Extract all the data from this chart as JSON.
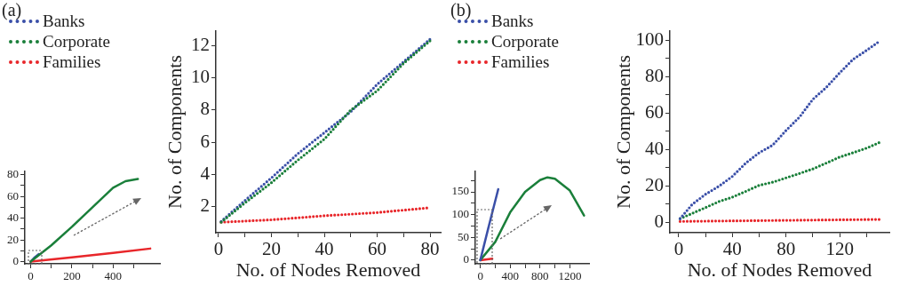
{
  "chart_data": [
    {
      "type": "line",
      "title": "(a)",
      "legend": "top left",
      "line_style": "solid",
      "xlim": [
        -28,
        627
      ],
      "xticks": [
        0,
        {
          "value": 100,
          "label": null
        },
        200,
        {
          "value": 300,
          "label": null
        },
        400,
        {
          "value": 500,
          "label": null
        }
      ],
      "ylim": [
        -2,
        83
      ],
      "yticks": [
        0,
        {
          "value": 10,
          "label": null
        },
        20,
        {
          "value": 30,
          "label": null
        },
        40,
        {
          "value": 50,
          "label": null
        },
        60,
        {
          "value": 70,
          "label": null
        },
        80
      ],
      "series": [
        {
          "name": "Corporate",
          "color": "#1a7f3a",
          "x": [
            0,
            100,
            200,
            300,
            400,
            460,
            520
          ],
          "values": [
            0,
            15,
            32,
            50,
            68,
            74,
            76
          ]
        },
        {
          "name": "Families",
          "color": "#e8262a",
          "x": [
            0,
            200,
            400,
            580
          ],
          "values": [
            0,
            4,
            8,
            12
          ]
        },
        {
          "name": "Banks",
          "color": "#3a4fa8",
          "x": [
            0,
            20,
            40
          ],
          "values": [
            0,
            4,
            7
          ]
        }
      ]
    },
    {
      "type": "line",
      "xlabel": "No. of Nodes Removed",
      "ylabel": "No. of Components",
      "line_style": "dotted",
      "legend": false,
      "xlim": [
        -1,
        84
      ],
      "xticks": [
        0,
        {
          "value": 10,
          "label": null
        },
        20,
        {
          "value": 30,
          "label": null
        },
        40,
        {
          "value": 50,
          "label": null
        },
        60,
        {
          "value": 70,
          "label": null
        },
        80
      ],
      "ylim": [
        0.4,
        12.9
      ],
      "yticks": [
        2,
        4,
        6,
        8,
        10,
        12
      ],
      "series": [
        {
          "color": "#1a7f3a",
          "x": [
            1,
            10,
            20,
            30,
            40,
            50,
            60,
            70,
            80
          ],
          "values": [
            1.05,
            2.25,
            3.5,
            4.9,
            6.2,
            8.0,
            9.2,
            10.9,
            12.3
          ]
        },
        {
          "color": "#3a4fa8",
          "x": [
            1,
            10,
            20,
            30,
            40,
            50,
            60,
            70,
            80
          ],
          "values": [
            1.1,
            2.4,
            3.8,
            5.3,
            6.6,
            7.9,
            9.6,
            11.0,
            12.4
          ]
        },
        {
          "color": "#e8262a",
          "x": [
            1,
            20,
            40,
            60,
            80
          ],
          "values": [
            1.05,
            1.2,
            1.45,
            1.65,
            1.95
          ]
        }
      ]
    },
    {
      "type": "line",
      "title": "(b)",
      "legend": "top left",
      "line_style": "solid",
      "xlim": [
        -67,
        1457
      ],
      "xticks": [
        0,
        {
          "value": 200,
          "label": null
        },
        400,
        {
          "value": 600,
          "label": null
        },
        800,
        {
          "value": 1000,
          "label": null
        },
        1200
      ],
      "ylim": [
        -8,
        195
      ],
      "yticks": [
        0,
        {
          "value": 25,
          "label": null
        },
        50,
        {
          "value": 75,
          "label": null
        },
        100,
        {
          "value": 125,
          "label": null
        },
        150,
        {
          "value": 175,
          "label": null
        }
      ],
      "series": [
        {
          "name": "Banks",
          "color": "#3a4fa8",
          "x": [
            0,
            100,
            240
          ],
          "values": [
            0,
            66,
            156
          ]
        },
        {
          "name": "Corporate",
          "color": "#1a7f3a",
          "x": [
            0,
            200,
            400,
            600,
            800,
            900,
            1000,
            1200,
            1390
          ],
          "values": [
            0,
            40,
            105,
            150,
            176,
            182,
            179,
            153,
            98
          ]
        },
        {
          "name": "Families",
          "color": "#e8262a",
          "x": [
            0,
            160
          ],
          "values": [
            0,
            3
          ]
        }
      ]
    },
    {
      "type": "line",
      "xlabel": "No. of Nodes Removed",
      "ylabel": "No. of Components",
      "line_style": "dotted",
      "legend": false,
      "xlim": [
        -6.6,
        157
      ],
      "xticks": [
        0,
        {
          "value": 20,
          "label": null
        },
        40,
        {
          "value": 60,
          "label": null
        },
        80,
        {
          "value": 100,
          "label": null
        },
        120,
        {
          "value": 140,
          "label": null
        }
      ],
      "ylim": [
        -5.7,
        104.9
      ],
      "yticks": [
        0,
        {
          "value": 10,
          "label": null
        },
        20,
        {
          "value": 30,
          "label": null
        },
        40,
        {
          "value": 50,
          "label": null
        },
        60,
        {
          "value": 70,
          "label": null
        },
        80,
        {
          "value": 90,
          "label": null
        },
        100
      ],
      "series": [
        {
          "color": "#3a4fa8",
          "x": [
            1,
            10,
            20,
            30,
            40,
            50,
            60,
            70,
            80,
            90,
            100,
            110,
            120,
            130,
            140,
            150
          ],
          "values": [
            2,
            9.8,
            15.4,
            19.8,
            25.2,
            32.5,
            38.2,
            42.3,
            50.4,
            57.7,
            67.5,
            74,
            82,
            89.4,
            94.3,
            99.5
          ]
        },
        {
          "color": "#1a7f3a",
          "x": [
            1,
            10,
            20,
            30,
            40,
            50,
            60,
            70,
            80,
            90,
            100,
            110,
            120,
            130,
            140,
            150
          ],
          "values": [
            2,
            4.9,
            8.1,
            11.4,
            13.8,
            17,
            20.3,
            22,
            24.4,
            26.8,
            29.3,
            32.5,
            35.8,
            38.2,
            40.7,
            43.9
          ]
        },
        {
          "color": "#e8262a",
          "x": [
            1,
            150
          ],
          "values": [
            0.5,
            1.6
          ]
        }
      ]
    }
  ]
}
